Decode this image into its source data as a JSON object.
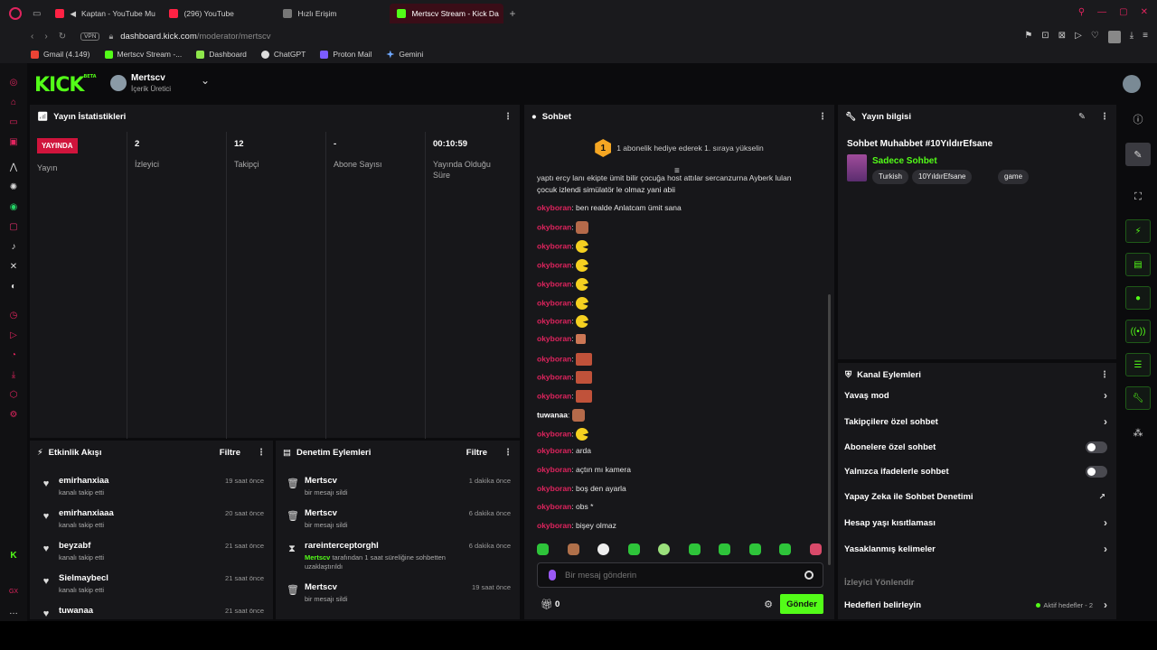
{
  "browser": {
    "tabs": [
      {
        "label": "Kaptan - YouTube Mu",
        "fav_color": "#ff2244",
        "active": false
      },
      {
        "label": "(296) YouTube",
        "fav_color": "#ff2244",
        "active": false
      },
      {
        "label": "Hızlı Erişim",
        "fav_color": "#777777",
        "active": false
      },
      {
        "label": "Mertscv Stream - Kick Da",
        "fav_color": "#53fc18",
        "active": true
      }
    ],
    "vpn": "VPN",
    "url_host": "dashboard.kick.com",
    "url_path": "/moderator/mertscv",
    "bookmarks": [
      {
        "label": "Gmail (4.149)",
        "color": "#ea4335"
      },
      {
        "label": "Mertscv Stream -...",
        "color": "#53fc18"
      },
      {
        "label": "Dashboard",
        "color": "#8ee64b"
      },
      {
        "label": "ChatGPT",
        "color": "#dddddd"
      },
      {
        "label": "Proton Mail",
        "color": "#7b5cff"
      },
      {
        "label": "Gemini",
        "color": "#6fa8ff"
      }
    ]
  },
  "header": {
    "logo": "KICK",
    "logo_sup": "BETA",
    "channel_name": "Mertscv",
    "channel_role": "İçerik Üretici"
  },
  "stats": {
    "title": "Yayın İstatistikleri",
    "live_badge": "YAYINDA",
    "items": [
      {
        "value": "",
        "label": "Yayın"
      },
      {
        "value": "2",
        "label": "İzleyici"
      },
      {
        "value": "12",
        "label": "Takipçi"
      },
      {
        "value": "-",
        "label": "Abone Sayısı"
      },
      {
        "value": "00:10:59",
        "label": "Yayında Olduğu Süre"
      }
    ]
  },
  "activity": {
    "title": "Etkinlik Akışı",
    "filter": "Filtre",
    "items": [
      {
        "user": "emirhanxiaa",
        "text": "kanalı takip etti",
        "time": "19 saat önce"
      },
      {
        "user": "emirhanxiaaa",
        "text": "kanalı takip etti",
        "time": "20 saat önce"
      },
      {
        "user": "beyzabf",
        "text": "kanalı takip etti",
        "time": "21 saat önce"
      },
      {
        "user": "Sielmaybecl",
        "text": "kanalı takip etti",
        "time": "21 saat önce"
      },
      {
        "user": "tuwanaa",
        "text": "",
        "time": "21 saat önce"
      }
    ]
  },
  "moderation": {
    "title": "Denetim Eylemleri",
    "filter": "Filtre",
    "items": [
      {
        "user": "Mertscv",
        "text": "bir mesajı sildi",
        "time": "1 dakika önce",
        "icon": "trash"
      },
      {
        "user": "Mertscv",
        "text": "bir mesajı sildi",
        "time": "6 dakika önce",
        "icon": "trash"
      },
      {
        "user": "rareinterceptorghl",
        "actor": "Mertscv",
        "text": "tarafından 1 saat süreliğine sohbetten uzaklaştırıldı",
        "time": "6 dakika önce",
        "icon": "hourglass"
      },
      {
        "user": "Mertscv",
        "text": "bir mesajı sildi",
        "time": "19 saat önce",
        "icon": "trash"
      }
    ]
  },
  "chat": {
    "title": "Sohbet",
    "banner_num": "1",
    "banner_text": "1 abonelik hediye ederek 1. sıraya yükselin",
    "top_text_1": "yaptı ercy lanı ekipte ümit bilir çocuğa host attılar sercanzurna Ayberk lulan",
    "top_text_2": "çocuk izlendi simülatör le olmaz yani abii",
    "messages": [
      {
        "user": "okyboran",
        "text": "ben realde Anlatcam ümit sana",
        "emote": ""
      },
      {
        "user": "okyboran",
        "text": "",
        "emote": "face"
      },
      {
        "user": "okyboran",
        "text": "",
        "emote": "pac"
      },
      {
        "user": "okyboran",
        "text": "",
        "emote": "pac"
      },
      {
        "user": "okyboran",
        "text": "",
        "emote": "pac"
      },
      {
        "user": "okyboran",
        "text": "",
        "emote": "pac"
      },
      {
        "user": "okyboran",
        "text": "",
        "emote": "pac"
      },
      {
        "user": "okyboran",
        "text": "",
        "emote": "small"
      },
      {
        "user": "okyboran",
        "text": "",
        "emote": "box"
      },
      {
        "user": "okyboran",
        "text": "",
        "emote": "box"
      },
      {
        "user": "okyboran",
        "text": "",
        "emote": "box"
      },
      {
        "user": "tuwanaa",
        "text": "",
        "emote": "face"
      },
      {
        "user": "okyboran",
        "text": "",
        "emote": "pac"
      },
      {
        "user": "okyboran",
        "text": "arda",
        "emote": ""
      },
      {
        "user": "okyboran",
        "text": "açtın mı kamera",
        "emote": ""
      },
      {
        "user": "okyboran",
        "text": "boş den ayarla",
        "emote": ""
      },
      {
        "user": "okyboran",
        "text": "obs *",
        "emote": ""
      },
      {
        "user": "okyboran",
        "text": "bişey olmaz",
        "emote": ""
      }
    ],
    "input_placeholder": "Bir mesaj gönderin",
    "gift_count": "0",
    "send_label": "Gönder",
    "colors": {
      "okyboran": "#e0245e",
      "tuwanaa": "#ffffff"
    }
  },
  "stream_info": {
    "title_label": "Yayın bilgisi",
    "stream_title": "Sohbet Muhabbet #10YıldırEfsane",
    "category": "Sadece Sohbet",
    "tags": [
      "Turkish",
      "10YıldırEfsane",
      "game"
    ]
  },
  "channel_actions": {
    "title": "Kanal Eylemleri",
    "rows": [
      {
        "label": "Yavaş mod",
        "control": "chevron"
      },
      {
        "label": "Takipçilere özel sohbet",
        "control": "chevron"
      },
      {
        "label": "Abonelere özel sohbet",
        "control": "toggle"
      },
      {
        "label": "Yalnızca ifadelerle sohbet",
        "control": "toggle"
      },
      {
        "label": "Yapay Zeka ile Sohbet Denetimi",
        "control": "external"
      },
      {
        "label": "Hesap yaşı kısıtlaması",
        "control": "chevron"
      },
      {
        "label": "Yasaklanmış kelimeler",
        "control": "chevron"
      }
    ],
    "section_label": "İzleyici Yönlendir",
    "goal_label": "Hedefleri belirleyin",
    "goal_status": "Aktif hedefler - 2"
  }
}
